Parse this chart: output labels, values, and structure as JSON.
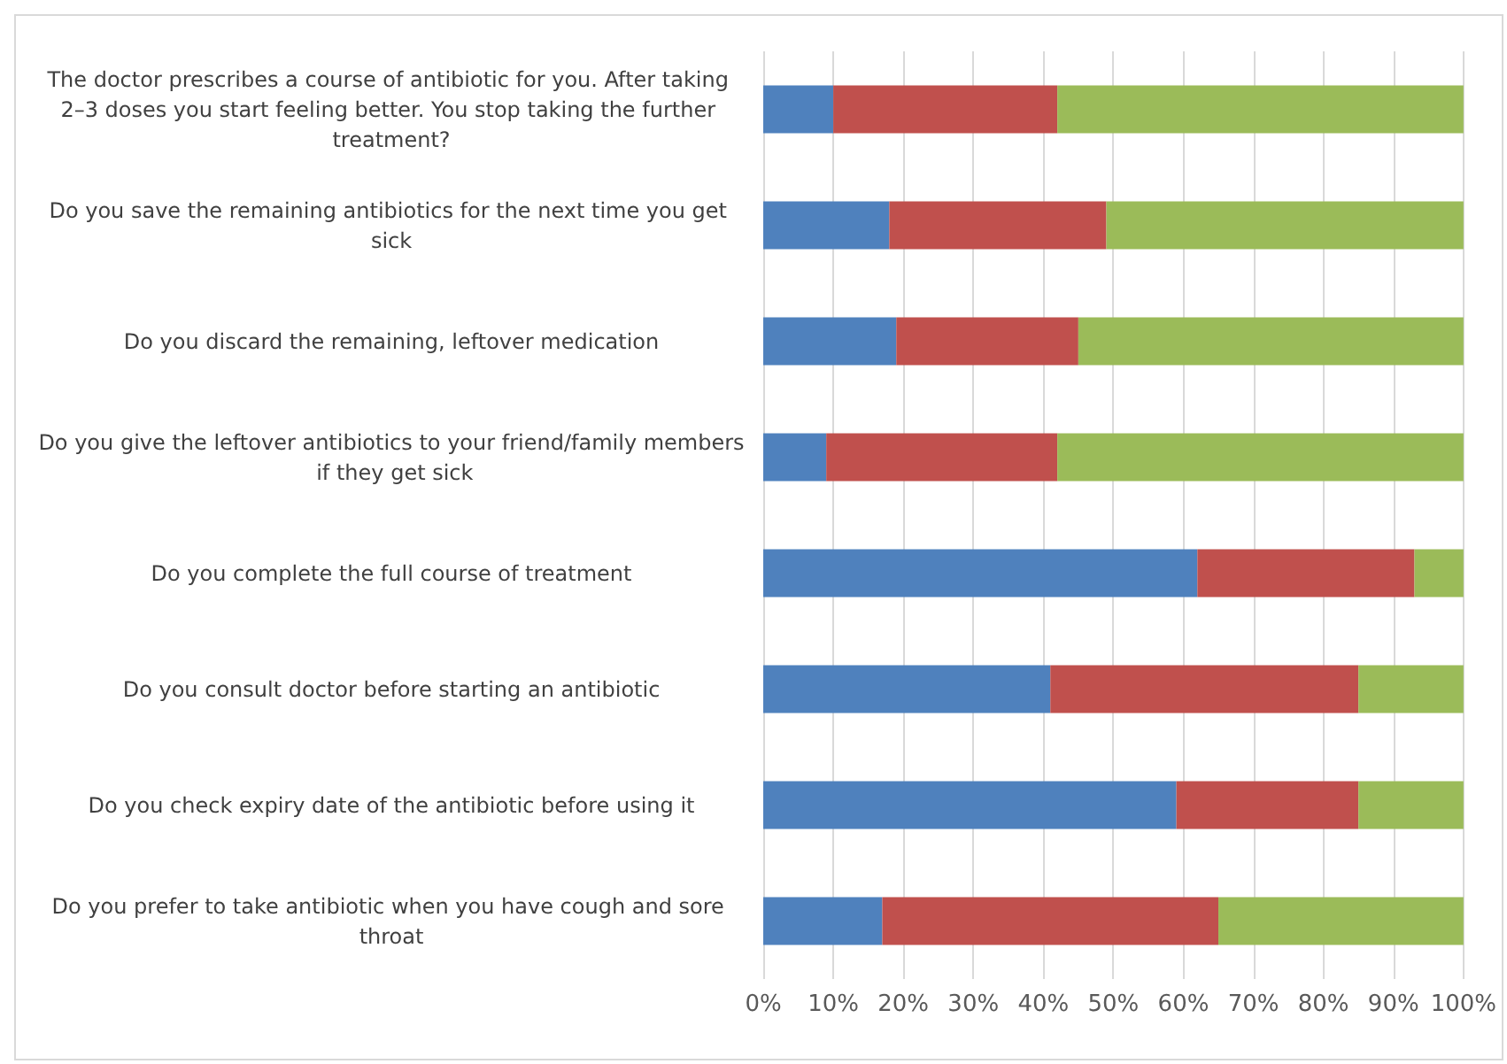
{
  "chart_data": {
    "type": "bar",
    "orientation": "horizontal",
    "stacked": true,
    "categories": [
      "The doctor prescribes a course of antibiotic for you. After taking 2–3 doses you start feeling better. You stop taking the further treatment?",
      "Do you save the remaining antibiotics for the next time you get sick",
      "Do you discard the remaining, leftover medication",
      "Do you give the leftover antibiotics to your friend/family members if they get sick",
      "Do you complete the full course of treatment",
      "Do you consult doctor before starting an antibiotic",
      "Do you check expiry date of the antibiotic before using it",
      "Do you prefer to take antibiotic when you have cough and sore throat"
    ],
    "series": [
      {
        "color": "#4f81bd",
        "values": [
          10,
          18,
          19,
          9,
          62,
          41,
          59,
          17
        ]
      },
      {
        "color": "#c0504d",
        "values": [
          32,
          31,
          26,
          33,
          31,
          44,
          26,
          48
        ]
      },
      {
        "color": "#9bbb59",
        "values": [
          58,
          51,
          55,
          58,
          7,
          15,
          15,
          35
        ]
      }
    ],
    "xlim": [
      0,
      100
    ],
    "xticks": [
      {
        "value": 0,
        "label": "0%"
      },
      {
        "value": 10,
        "label": "10%"
      },
      {
        "value": 20,
        "label": "20%"
      },
      {
        "value": 30,
        "label": "30%"
      },
      {
        "value": 40,
        "label": "40%"
      },
      {
        "value": 50,
        "label": "50%"
      },
      {
        "value": 60,
        "label": "60%"
      },
      {
        "value": 70,
        "label": "70%"
      },
      {
        "value": 80,
        "label": "80%"
      },
      {
        "value": 90,
        "label": "90%"
      },
      {
        "value": 100,
        "label": "100%"
      }
    ],
    "grid": "x"
  }
}
